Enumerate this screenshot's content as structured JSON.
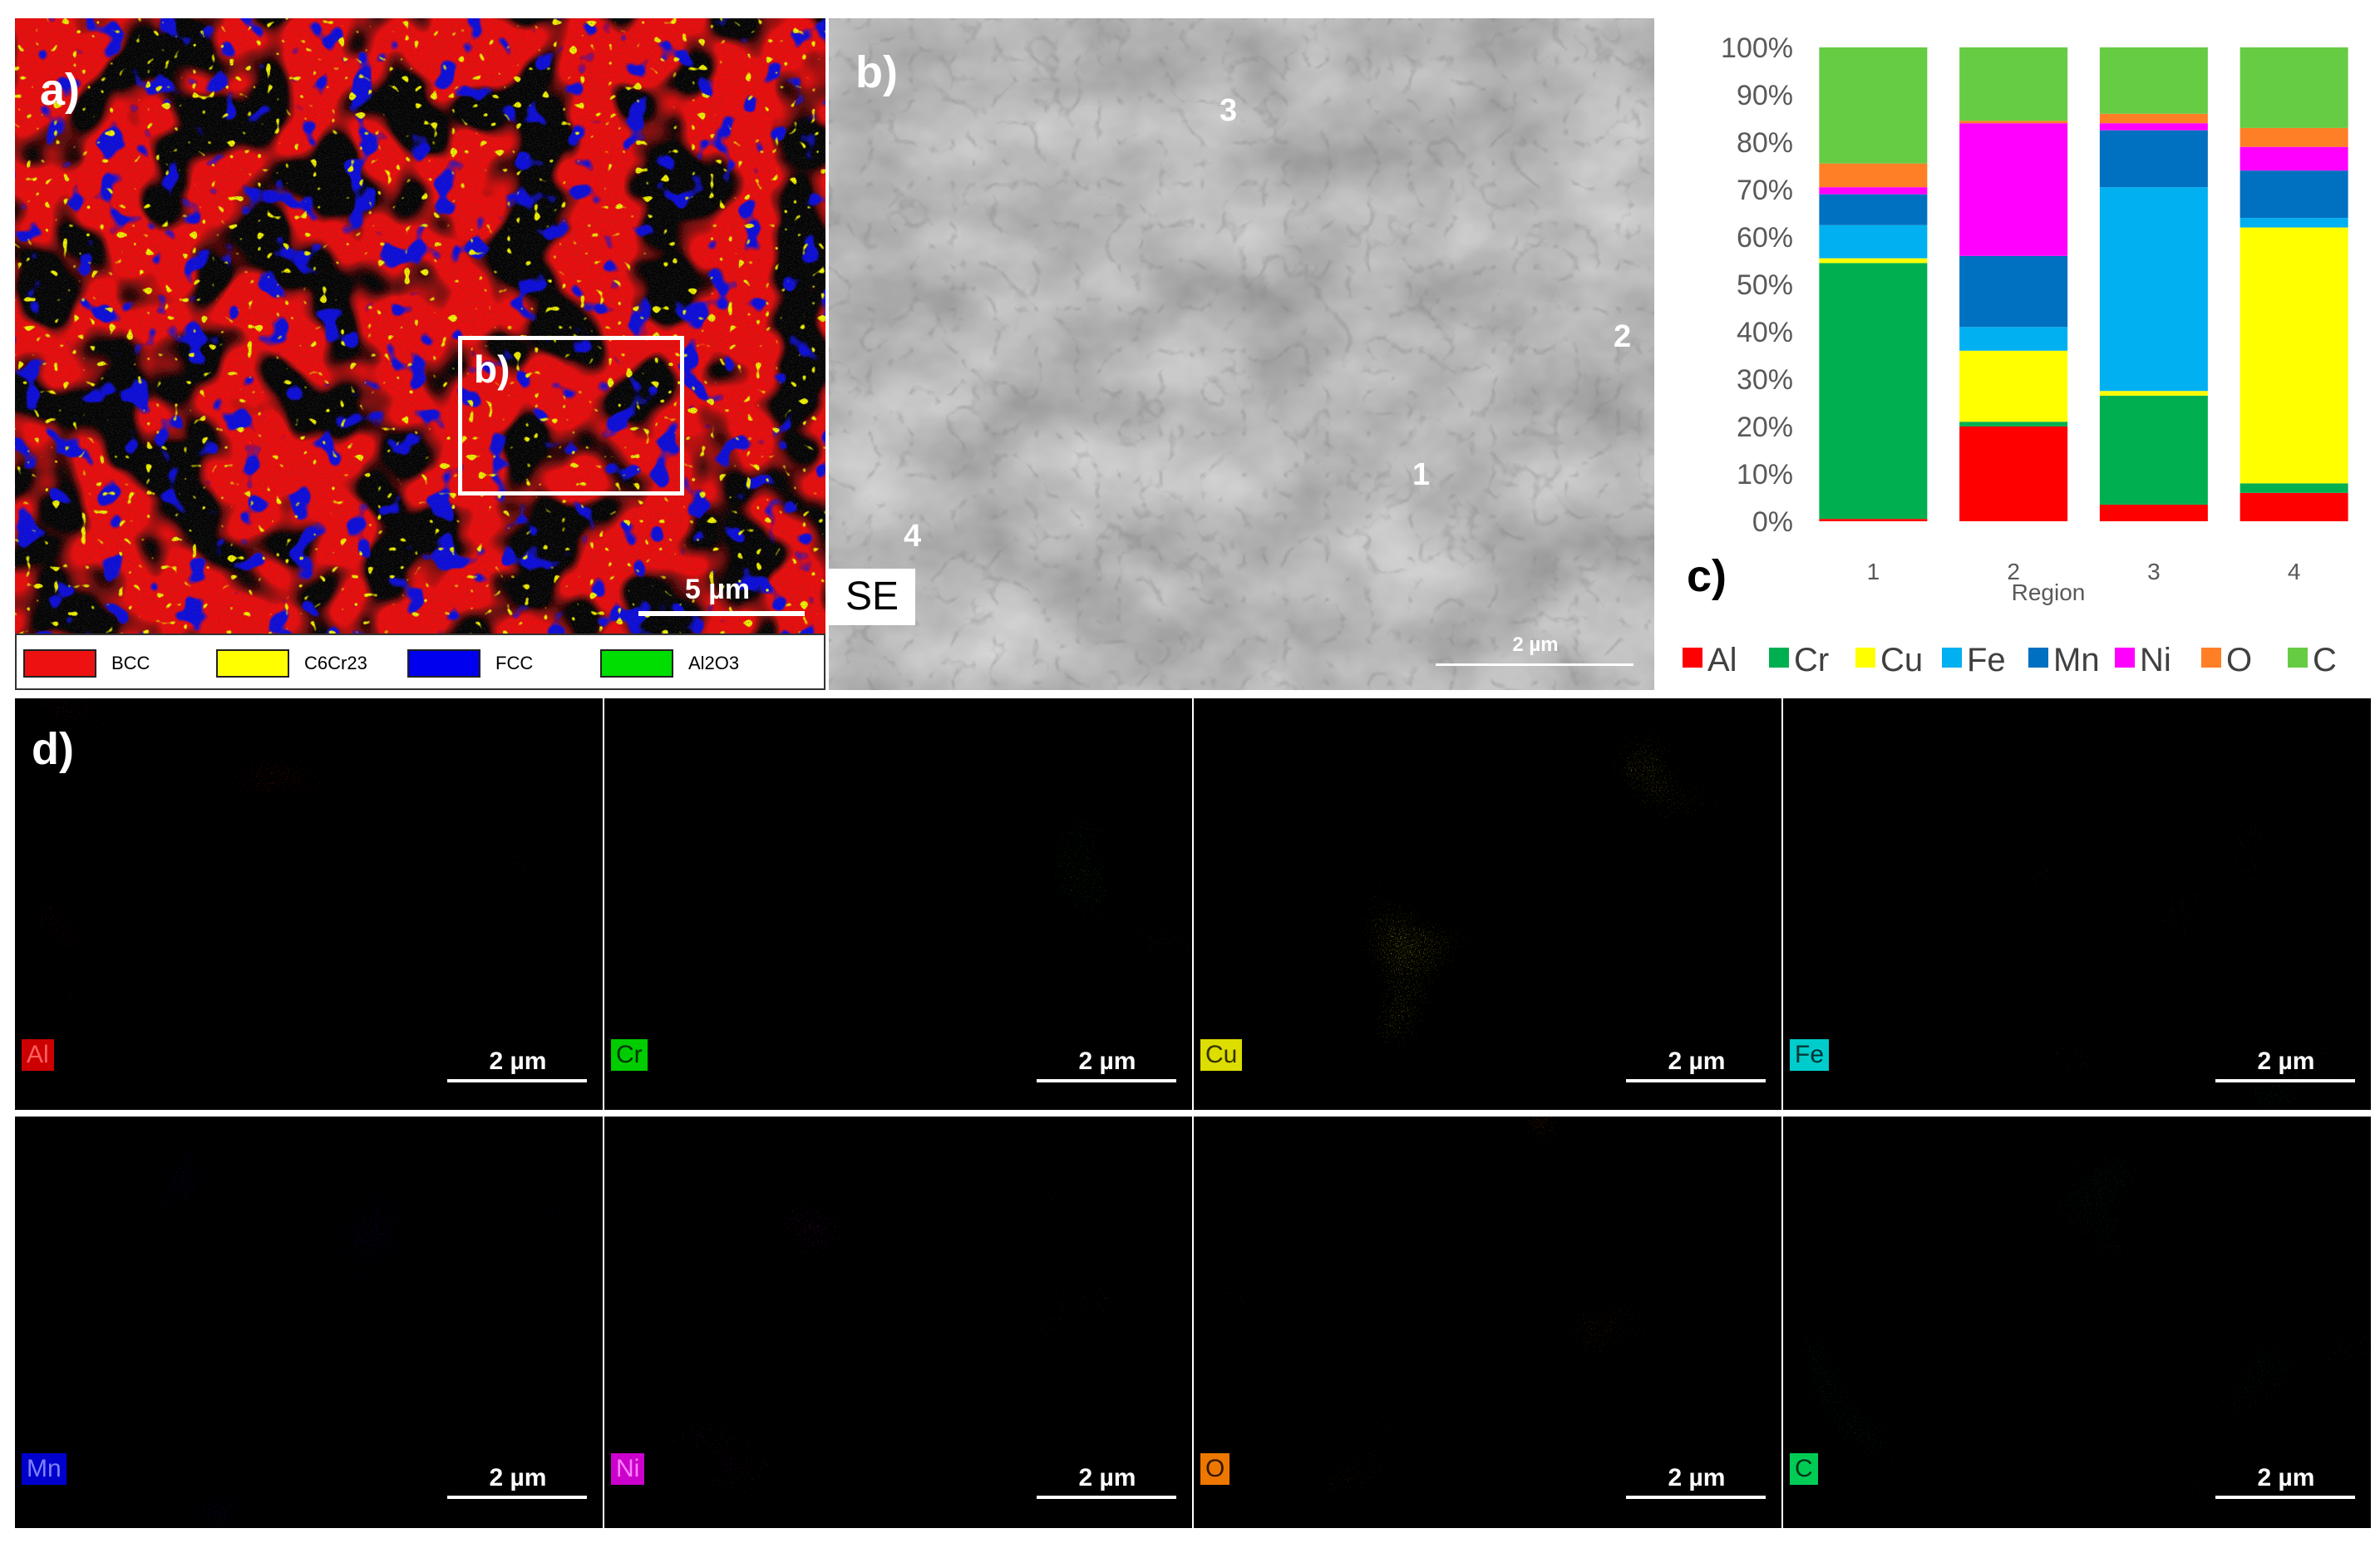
{
  "panel_a": {
    "label": "a)",
    "inset_label": "b)",
    "scale_label": "5 µm",
    "legend": [
      {
        "label": "BCC",
        "color": "#ee1111"
      },
      {
        "label": "C6Cr23",
        "color": "#ffff00"
      },
      {
        "label": "FCC",
        "color": "#0000ee"
      },
      {
        "label": "Al2O3",
        "color": "#00dd00"
      }
    ]
  },
  "panel_b": {
    "label": "b)",
    "se_label": "SE",
    "scale_label": "2 µm",
    "region_labels": [
      "1",
      "2",
      "3",
      "4"
    ]
  },
  "panel_c": {
    "label": "c)"
  },
  "chart_data": {
    "type": "bar",
    "stacked": true,
    "categories": [
      "1",
      "2",
      "3",
      "4"
    ],
    "xlabel": "Region",
    "ylabel": "",
    "ylim": [
      0,
      100
    ],
    "yticks": [
      "0%",
      "10%",
      "20%",
      "30%",
      "40%",
      "50%",
      "60%",
      "70%",
      "80%",
      "90%",
      "100%"
    ],
    "legend_position": "bottom",
    "series": [
      {
        "name": "Al",
        "color": "#ff0000",
        "values": [
          0.5,
          20,
          3.5,
          6
        ]
      },
      {
        "name": "Cr",
        "color": "#00b050",
        "values": [
          54,
          1,
          23,
          2
        ]
      },
      {
        "name": "Cu",
        "color": "#ffff00",
        "values": [
          1,
          15,
          1,
          54
        ]
      },
      {
        "name": "Fe",
        "color": "#00b0f0",
        "values": [
          7,
          5,
          43,
          2
        ]
      },
      {
        "name": "Mn",
        "color": "#0070c0",
        "values": [
          6.5,
          15,
          12,
          10
        ]
      },
      {
        "name": "Ni",
        "color": "#ff00ff",
        "values": [
          1.5,
          28,
          1.5,
          5
        ]
      },
      {
        "name": "O",
        "color": "#ff7f27",
        "values": [
          5,
          0.5,
          2,
          4
        ]
      },
      {
        "name": "C",
        "color": "#66cc44",
        "values": [
          24.5,
          15.5,
          14,
          17
        ]
      }
    ]
  },
  "panel_d": {
    "label": "d)",
    "maps": [
      {
        "element": "Al",
        "scale_label": "2 µm",
        "color": "#ff2020",
        "badge_bg": "#cc0000",
        "badge_fg": "#ff6060"
      },
      {
        "element": "Cr",
        "scale_label": "2 µm",
        "color": "#20e020",
        "badge_bg": "#00cc00",
        "badge_fg": "#003300"
      },
      {
        "element": "Cu",
        "scale_label": "2 µm",
        "color": "#e8e020",
        "badge_bg": "#dddd00",
        "badge_fg": "#333300"
      },
      {
        "element": "Fe",
        "scale_label": "2 µm",
        "color": "#20d0d0",
        "badge_bg": "#00cccc",
        "badge_fg": "#003333"
      },
      {
        "element": "Mn",
        "scale_label": "2 µm",
        "color": "#1a1ae0",
        "badge_bg": "#0000cc",
        "badge_fg": "#8080ff"
      },
      {
        "element": "Ni",
        "scale_label": "2 µm",
        "color": "#e020e0",
        "badge_bg": "#cc00cc",
        "badge_fg": "#ff80ff"
      },
      {
        "element": "O",
        "scale_label": "2 µm",
        "color": "#e07010",
        "badge_bg": "#ee7700",
        "badge_fg": "#331800"
      },
      {
        "element": "C",
        "scale_label": "2 µm",
        "color": "#10c060",
        "badge_bg": "#00cc55",
        "badge_fg": "#003315"
      }
    ]
  }
}
